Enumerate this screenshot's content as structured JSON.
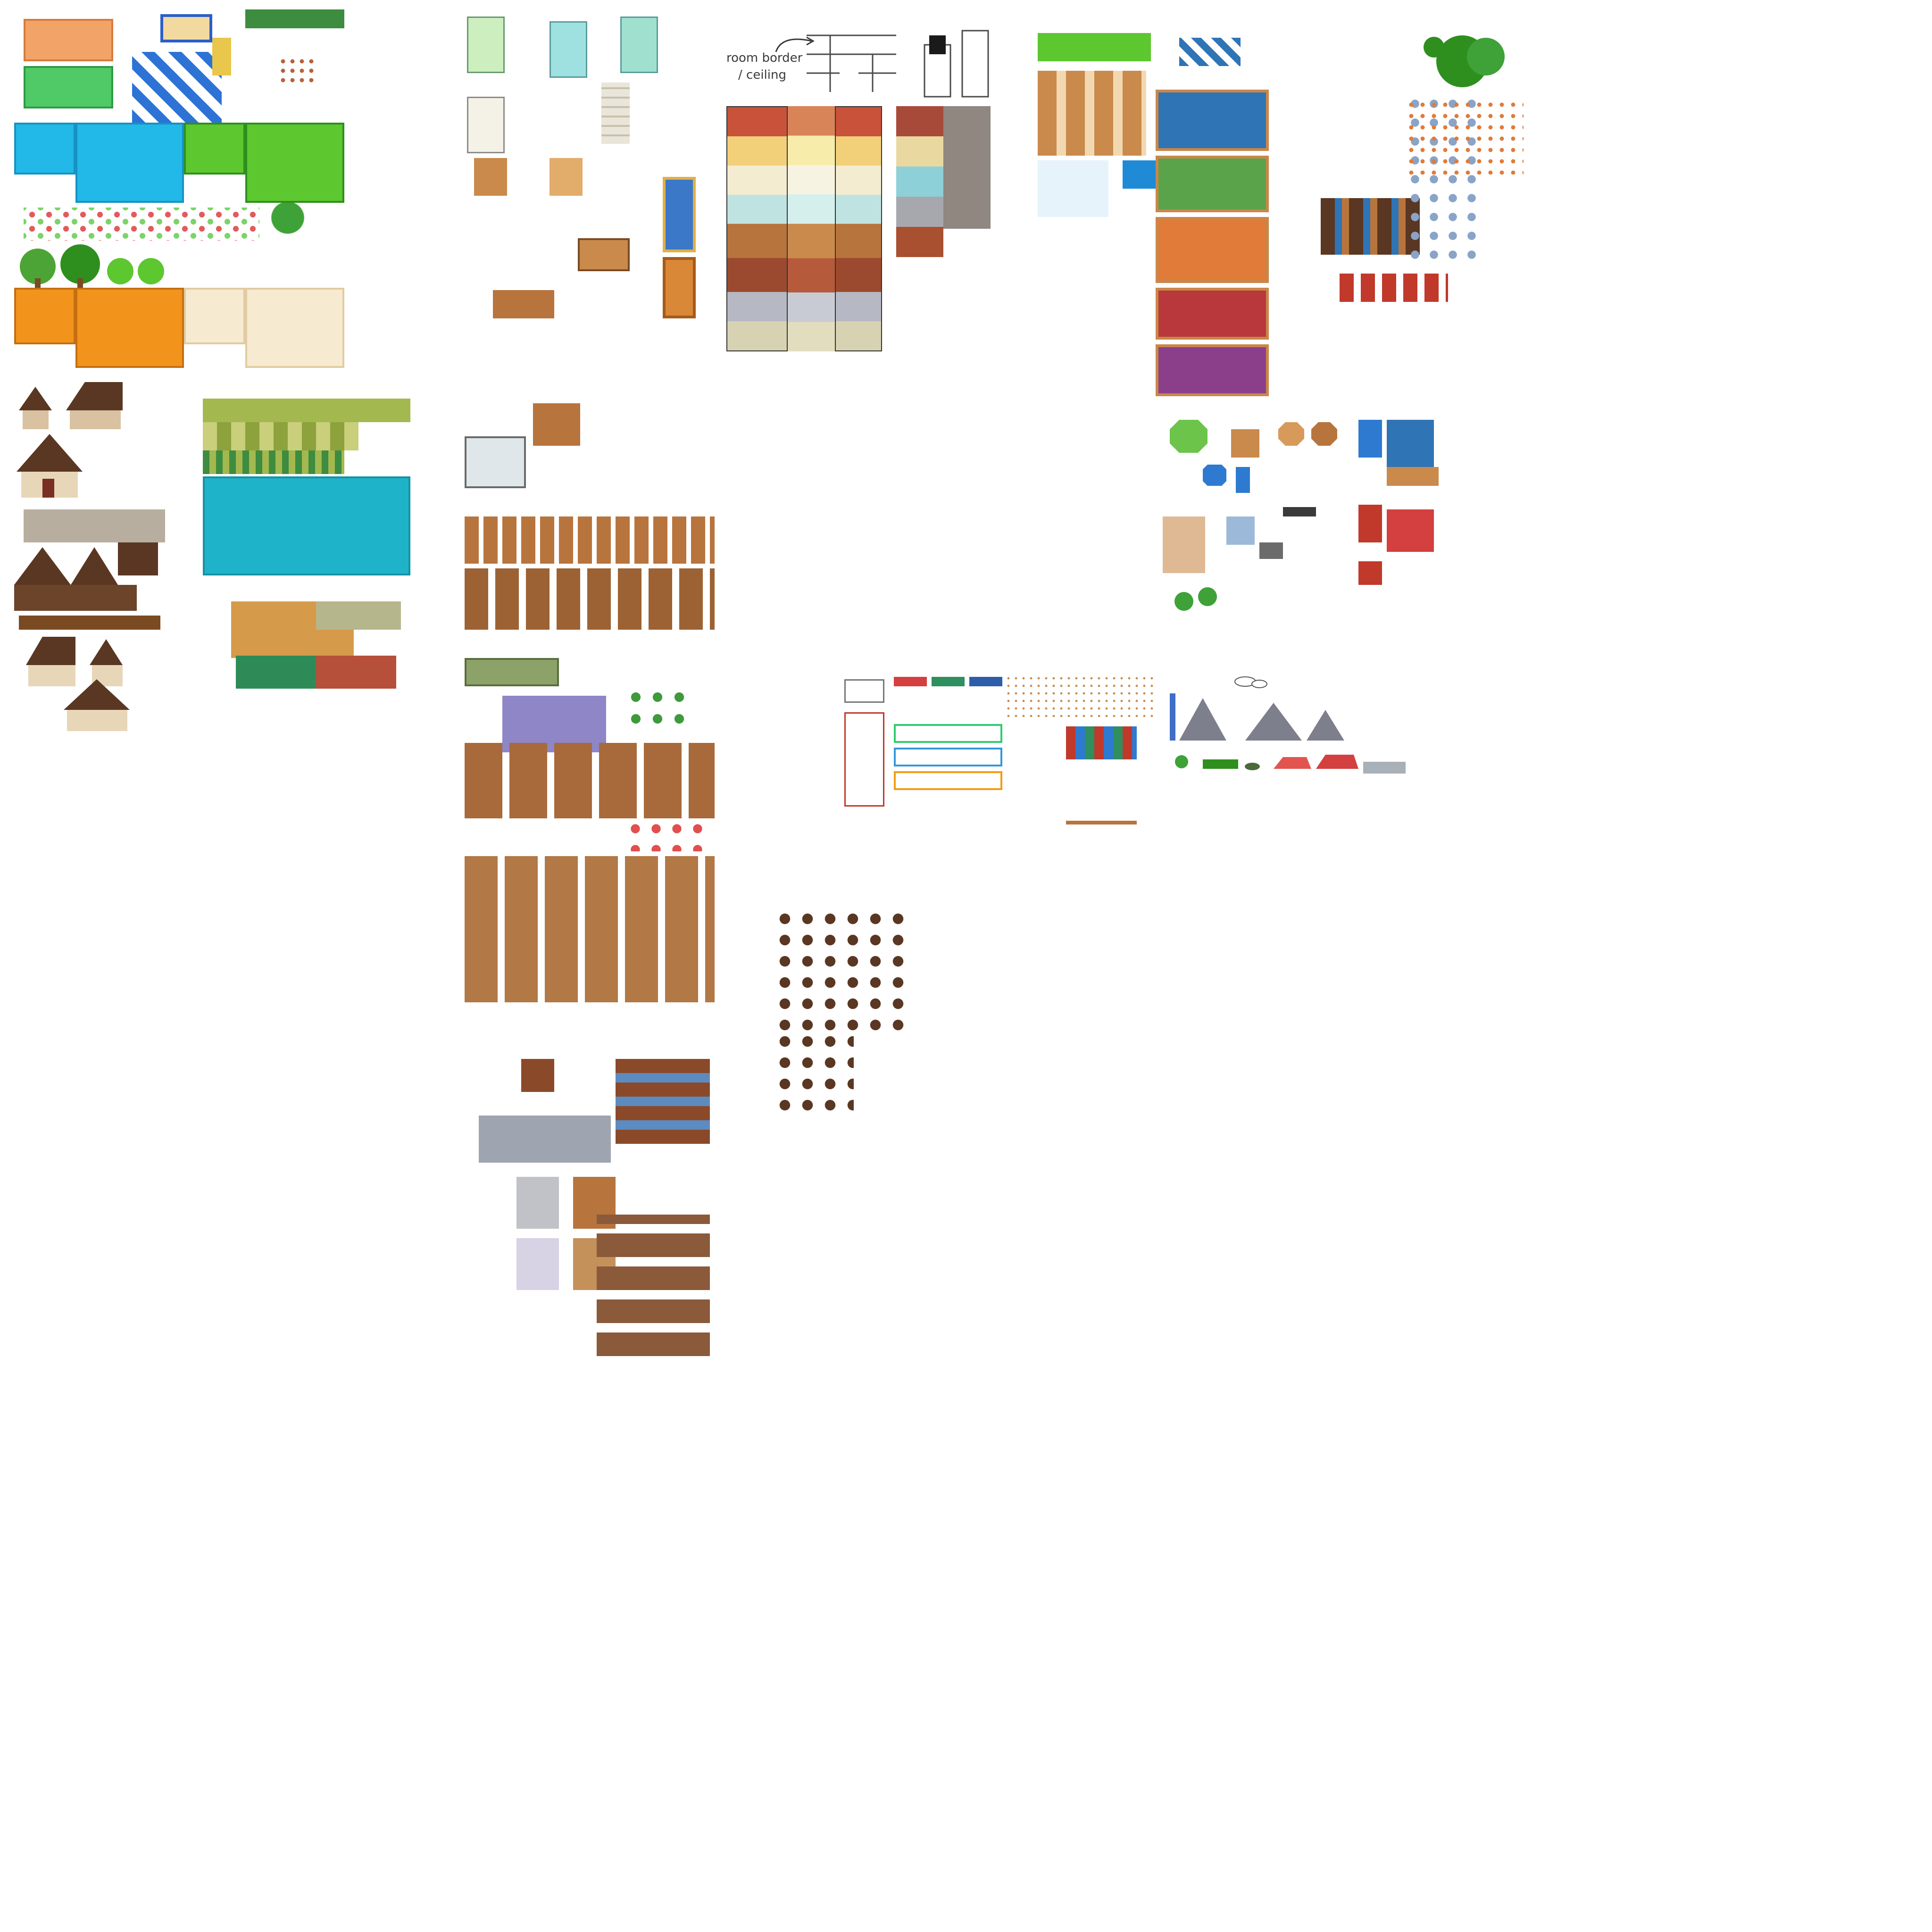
{
  "annotation": {
    "line1": "room border",
    "line2": "/ ceiling"
  },
  "palette": {
    "water": "#22b8e8",
    "water_dark": "#1593c2",
    "grass": "#5cc72f",
    "grass_dark": "#2f8f1e",
    "dirt_orange": "#f2931c",
    "sand": "#f6ead0",
    "wood": "#b8743d",
    "wood_dark": "#7a4a23",
    "roof_brown": "#5a3722",
    "teal_water": "#1fb3c9",
    "olive_grass": "#a3b84f",
    "mountain": "#7d7f8c",
    "red_roof": "#e2554f",
    "stone": "#8f8780",
    "carpet_red": "#b9383c",
    "carpet_purple": "#8b3f8a",
    "bright_blue": "#1f8ad6",
    "white": "#ffffff"
  },
  "sheets": [
    "outdoor-terrain-sheet",
    "house-exterior-sheet",
    "farm-terrain-sheet",
    "interior-furniture-sheet",
    "wall-floor-sheet",
    "building-interior-sheet",
    "misc-props-sheet",
    "ui-sprite-sheet",
    "landscape-sheet",
    "character-sheet"
  ]
}
